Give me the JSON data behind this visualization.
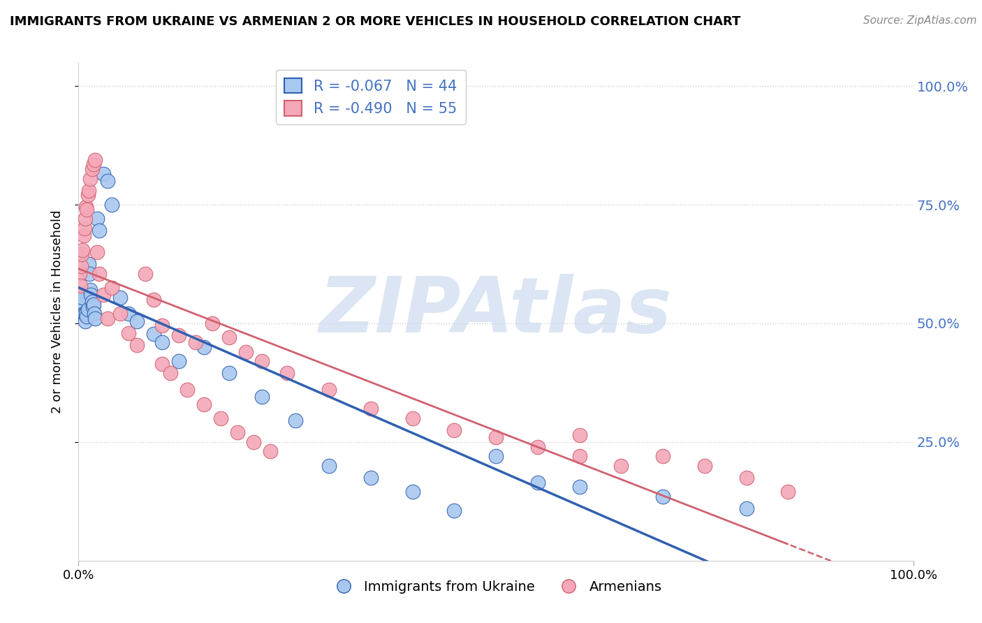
{
  "title": "IMMIGRANTS FROM UKRAINE VS ARMENIAN 2 OR MORE VEHICLES IN HOUSEHOLD CORRELATION CHART",
  "source": "Source: ZipAtlas.com",
  "ylabel": "2 or more Vehicles in Household",
  "legend_ukraine_R": "-0.067",
  "legend_ukraine_N": "44",
  "legend_armenian_R": "-0.490",
  "legend_armenian_N": "55",
  "ukraine_color": "#a8c8f0",
  "armenian_color": "#f4a8b8",
  "ukraine_line_color": "#3060b0",
  "armenian_line_color": "#d06070",
  "watermark": "ZIPAtlas",
  "watermark_color": "#c8d8ee",
  "ukraine_x": [
    0.001,
    0.002,
    0.003,
    0.004,
    0.005,
    0.006,
    0.007,
    0.008,
    0.009,
    0.01,
    0.011,
    0.012,
    0.013,
    0.014,
    0.015,
    0.016,
    0.017,
    0.018,
    0.019,
    0.02,
    0.022,
    0.025,
    0.03,
    0.035,
    0.04,
    0.05,
    0.06,
    0.07,
    0.09,
    0.1,
    0.12,
    0.15,
    0.18,
    0.22,
    0.26,
    0.3,
    0.35,
    0.4,
    0.45,
    0.5,
    0.55,
    0.6,
    0.7,
    0.8
  ],
  "ukraine_y": [
    0.555,
    0.56,
    0.545,
    0.54,
    0.555,
    0.52,
    0.52,
    0.505,
    0.52,
    0.515,
    0.53,
    0.625,
    0.605,
    0.57,
    0.56,
    0.545,
    0.535,
    0.54,
    0.52,
    0.51,
    0.72,
    0.695,
    0.815,
    0.8,
    0.75,
    0.555,
    0.52,
    0.505,
    0.478,
    0.46,
    0.42,
    0.45,
    0.395,
    0.345,
    0.295,
    0.2,
    0.175,
    0.145,
    0.105,
    0.22,
    0.165,
    0.155,
    0.135,
    0.11
  ],
  "armenian_x": [
    0.001,
    0.002,
    0.003,
    0.004,
    0.005,
    0.006,
    0.007,
    0.008,
    0.009,
    0.01,
    0.011,
    0.012,
    0.014,
    0.016,
    0.018,
    0.02,
    0.022,
    0.025,
    0.03,
    0.035,
    0.04,
    0.05,
    0.06,
    0.07,
    0.08,
    0.09,
    0.1,
    0.12,
    0.14,
    0.16,
    0.18,
    0.2,
    0.22,
    0.25,
    0.3,
    0.35,
    0.4,
    0.45,
    0.5,
    0.55,
    0.6,
    0.65,
    0.7,
    0.75,
    0.8,
    0.85,
    0.1,
    0.11,
    0.13,
    0.15,
    0.17,
    0.19,
    0.21,
    0.23,
    0.6
  ],
  "armenian_y": [
    0.605,
    0.58,
    0.62,
    0.645,
    0.655,
    0.685,
    0.7,
    0.72,
    0.745,
    0.74,
    0.77,
    0.78,
    0.805,
    0.825,
    0.835,
    0.845,
    0.65,
    0.605,
    0.56,
    0.51,
    0.575,
    0.52,
    0.48,
    0.455,
    0.605,
    0.55,
    0.495,
    0.475,
    0.46,
    0.5,
    0.47,
    0.44,
    0.42,
    0.395,
    0.36,
    0.32,
    0.3,
    0.275,
    0.26,
    0.24,
    0.22,
    0.2,
    0.22,
    0.2,
    0.175,
    0.145,
    0.415,
    0.395,
    0.36,
    0.33,
    0.3,
    0.27,
    0.25,
    0.23,
    0.265
  ],
  "xlim": [
    0.0,
    1.0
  ],
  "ylim": [
    0.0,
    1.05
  ],
  "yticks": [
    0.25,
    0.5,
    0.75,
    1.0
  ],
  "ytick_labels": [
    "25.0%",
    "50.0%",
    "75.0%",
    "100.0%"
  ],
  "figsize": [
    14.06,
    8.92
  ],
  "dpi": 100
}
